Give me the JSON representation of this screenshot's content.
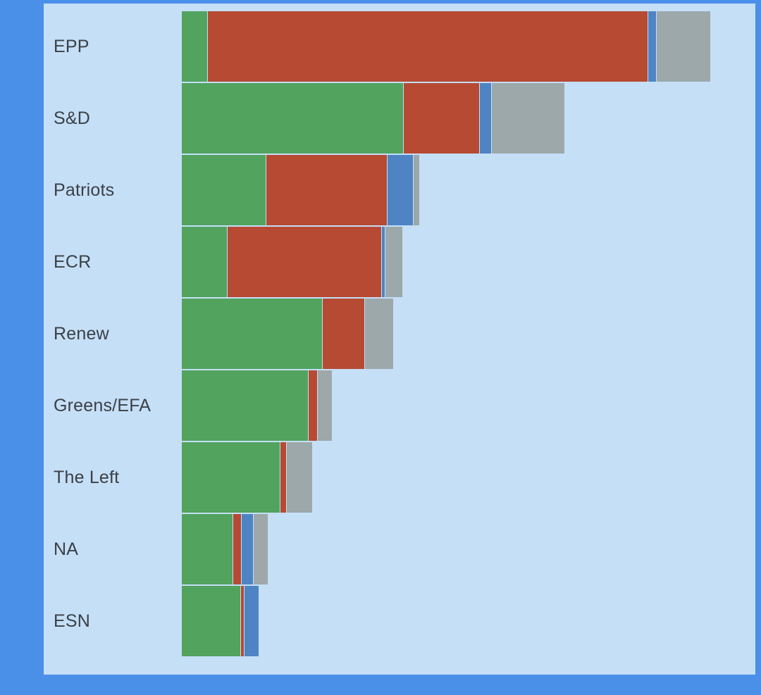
{
  "chart_data": {
    "type": "bar",
    "subtype": "horizontal_stacked",
    "title": "",
    "xlabel": "",
    "ylabel": "",
    "legend_position": "none",
    "grid": false,
    "categories": [
      "EPP",
      "S&D",
      "Patriots",
      "ECR",
      "Renew",
      "Greens/EFA",
      "The Left",
      "NA",
      "ESN"
    ],
    "series": [
      {
        "name": "green",
        "color": "#52a35e",
        "values": [
          9,
          79,
          30,
          16,
          50,
          45,
          35,
          18,
          21
        ]
      },
      {
        "name": "red",
        "color": "#b64a33",
        "values": [
          157,
          27,
          43,
          55,
          15,
          3,
          2,
          3,
          1
        ]
      },
      {
        "name": "blue",
        "color": "#4e84c4",
        "values": [
          3,
          4,
          9,
          1,
          0,
          0,
          0,
          4,
          5
        ]
      },
      {
        "name": "gray",
        "color": "#9da8aa",
        "values": [
          19,
          26,
          2,
          6,
          10,
          5,
          9,
          5,
          0
        ]
      }
    ],
    "category_totals": [
      188,
      136,
      84,
      78,
      75,
      53,
      46,
      30,
      27
    ],
    "x_range": [
      0,
      188
    ]
  },
  "colors": {
    "outer_background": "#4a90e8",
    "panel_background": "#c5dff7",
    "label_text": "#3b4045"
  }
}
